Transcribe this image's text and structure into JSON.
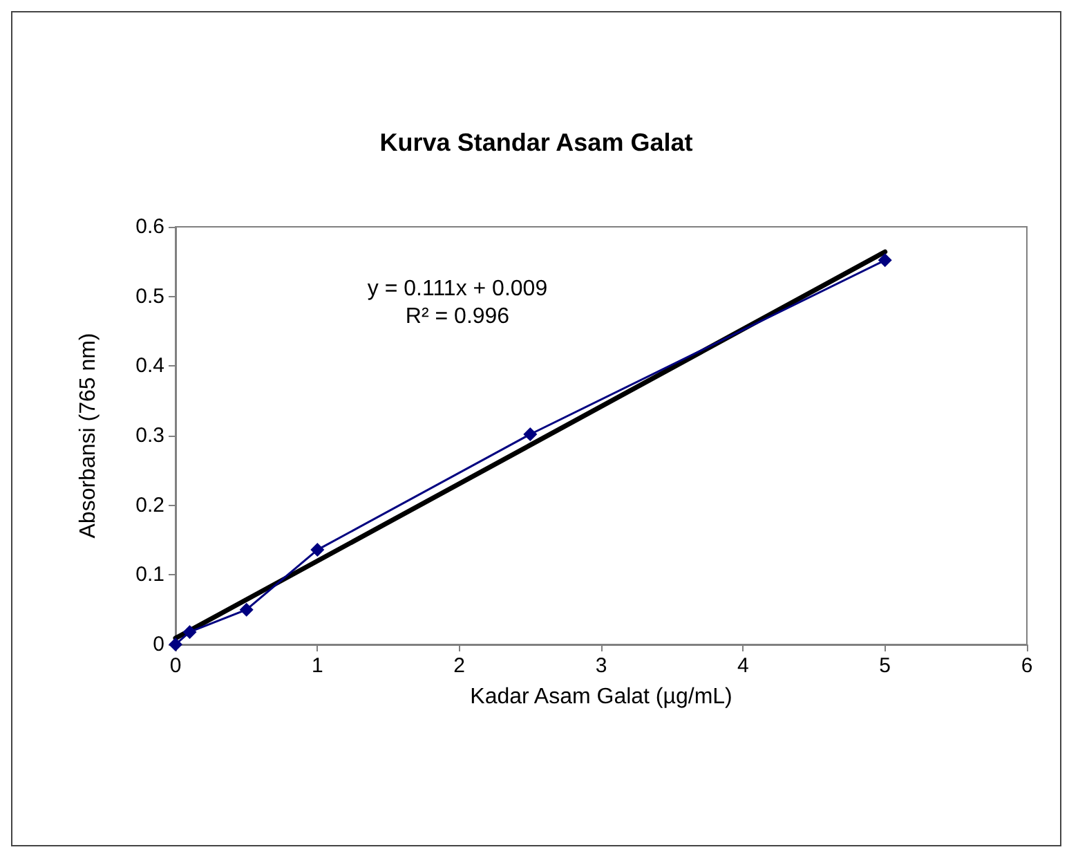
{
  "chart_data": {
    "type": "line",
    "title": "Kurva Standar Asam Galat",
    "xlabel": "Kadar Asam Galat (µg/mL)",
    "ylabel": "Absorbansi (765 nm)",
    "annotations": [
      "y = 0.111x + 0.009",
      "R² = 0.996"
    ],
    "series": [
      {
        "color": "#000080",
        "x": [
          0,
          0.1,
          0.5,
          1,
          2.5,
          5
        ],
        "values": [
          0,
          0.018,
          0.05,
          0.136,
          0.302,
          0.552
        ],
        "marker": "diamond"
      },
      {
        "color": "#000000",
        "x": [
          0,
          5
        ],
        "values": [
          0.009,
          0.564
        ],
        "marker": "none"
      }
    ],
    "xlim": [
      0,
      6
    ],
    "xticks": [
      0,
      1,
      2,
      3,
      4,
      5,
      6
    ],
    "ylim": [
      0,
      0.6
    ],
    "yticks": [
      0,
      0.1,
      0.2,
      0.3,
      0.4,
      0.5,
      0.6
    ],
    "grid": false
  }
}
